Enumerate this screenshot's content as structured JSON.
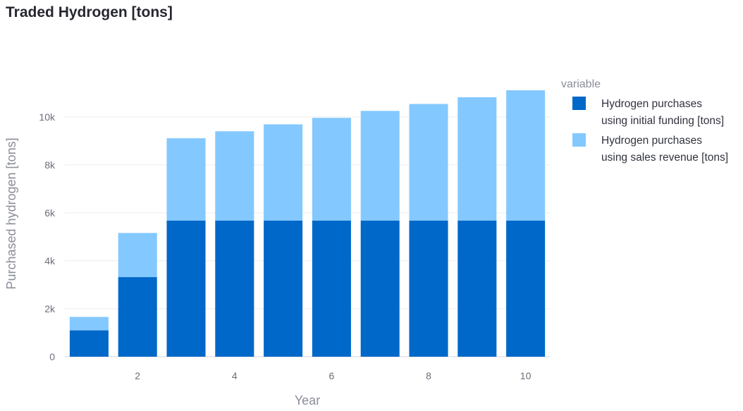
{
  "chart_data": {
    "type": "bar",
    "stacked": true,
    "title": "Traded Hydrogen [tons]",
    "xlabel": "Year",
    "ylabel": "Purchased hydrogen [tons]",
    "x": [
      1,
      2,
      3,
      4,
      5,
      6,
      7,
      8,
      9,
      10
    ],
    "x_ticks": [
      2,
      4,
      6,
      8,
      10
    ],
    "y_ticks": [
      0,
      2000,
      4000,
      6000,
      8000,
      10000
    ],
    "y_tick_labels": [
      "0",
      "2k",
      "4k",
      "6k",
      "8k",
      "10k"
    ],
    "ylim": [
      0,
      11700
    ],
    "grid": true,
    "legend_title": "variable",
    "legend_position": "right",
    "series": [
      {
        "name": "Hydrogen purchases using initial funding [tons]",
        "name_lines": [
          "Hydrogen purchases",
          "using initial funding [tons]"
        ],
        "color": "#0068c9",
        "values": [
          1100,
          3320,
          5680,
          5680,
          5680,
          5680,
          5680,
          5680,
          5680,
          5680
        ]
      },
      {
        "name": "Hydrogen purchases using sales revenue [tons]",
        "name_lines": [
          "Hydrogen purchases",
          "using sales revenue [tons]"
        ],
        "color": "#83c9ff",
        "values": [
          560,
          1840,
          3430,
          3720,
          4010,
          4280,
          4570,
          4860,
          5140,
          5430
        ]
      }
    ]
  }
}
